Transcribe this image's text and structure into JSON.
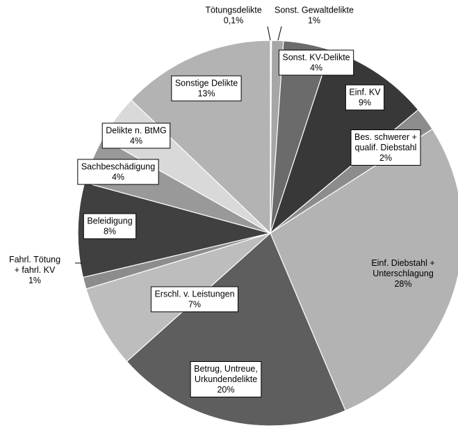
{
  "chart_data": {
    "type": "pie",
    "title": "",
    "start_angle_deg": 0,
    "direction": "clockwise",
    "slices": [
      {
        "label_lines": [
          "Tötungsdelikte",
          "0,1%"
        ],
        "value": 0.1,
        "color": "#ffffff",
        "boxed": false
      },
      {
        "label_lines": [
          "Sonst. Gewaltdelikte",
          "1%"
        ],
        "value": 1,
        "color": "#a6a6a6",
        "boxed": false
      },
      {
        "label_lines": [
          "Sonst. KV-Delikte",
          "4%"
        ],
        "value": 4,
        "color": "#6b6b6b",
        "boxed": true
      },
      {
        "label_lines": [
          "Einf. KV",
          "9%"
        ],
        "value": 9,
        "color": "#383838",
        "boxed": true
      },
      {
        "label_lines": [
          "Bes. schwerer +",
          "qualif. Diebstahl",
          "2%"
        ],
        "value": 2,
        "color": "#8c8c8c",
        "boxed": true
      },
      {
        "label_lines": [
          "Einf. Diebstahl +",
          "Unterschlagung",
          "28%"
        ],
        "value": 28,
        "color": "#b3b3b3",
        "boxed": false
      },
      {
        "label_lines": [
          "Betrug, Untreue,",
          "Urkundendelikte",
          "20%"
        ],
        "value": 20,
        "color": "#5e5e5e",
        "boxed": true
      },
      {
        "label_lines": [
          "Erschl. v. Leistungen",
          "7%"
        ],
        "value": 7,
        "color": "#bdbdbd",
        "boxed": true
      },
      {
        "label_lines": [
          "Fahrl. Tötung",
          "+ fahrl. KV",
          "1%"
        ],
        "value": 1,
        "color": "#8c8c8c",
        "boxed": false
      },
      {
        "label_lines": [
          "Beleidigung",
          "8%"
        ],
        "value": 8,
        "color": "#404040",
        "boxed": true
      },
      {
        "label_lines": [
          "Sachbeschädigung",
          "4%"
        ],
        "value": 4,
        "color": "#999999",
        "boxed": true
      },
      {
        "label_lines": [
          "Delikte n. BtMG",
          "4%"
        ],
        "value": 4,
        "color": "#d9d9d9",
        "boxed": true
      },
      {
        "label_lines": [
          "Sonstige Delikte",
          "13%"
        ],
        "value": 13,
        "color": "#b3b3b3",
        "boxed": true
      }
    ]
  }
}
